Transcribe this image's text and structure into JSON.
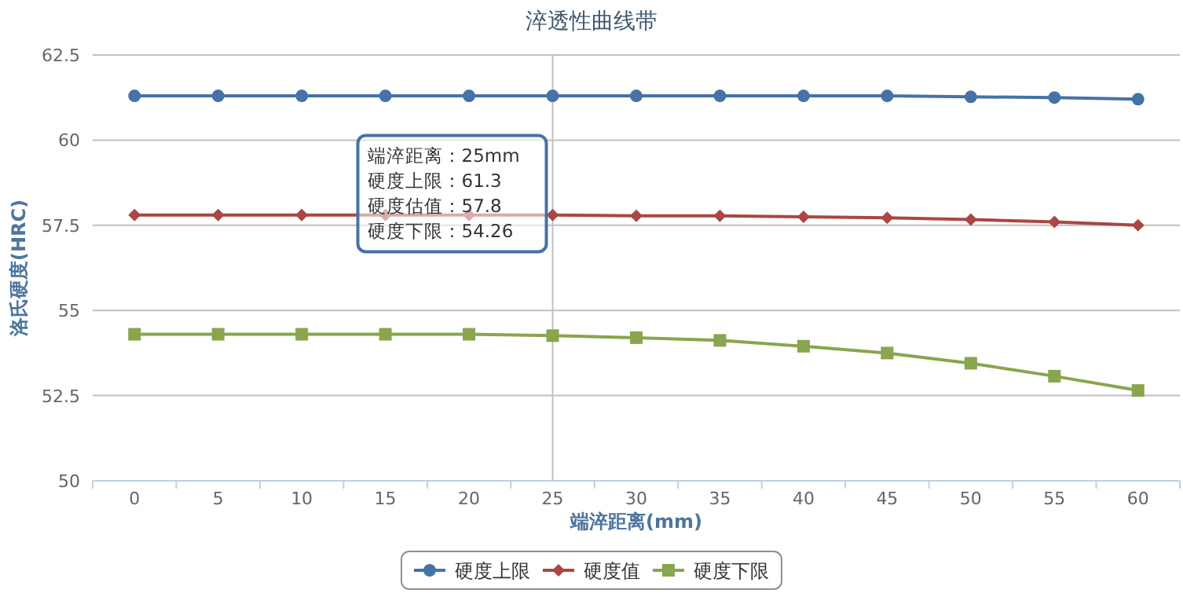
{
  "chart_data": {
    "type": "line",
    "title": "淬透性曲线带",
    "xlabel": "端淬距离(mm)",
    "ylabel": "洛氏硬度(HRC)",
    "categories": [
      "0",
      "5",
      "10",
      "15",
      "20",
      "25",
      "30",
      "35",
      "40",
      "45",
      "50",
      "55",
      "60"
    ],
    "series": [
      {
        "name": "硬度上限",
        "color": "#4572a7",
        "marker": "circle",
        "values": [
          61.3,
          61.3,
          61.3,
          61.3,
          61.3,
          61.3,
          61.3,
          61.3,
          61.3,
          61.3,
          61.27,
          61.25,
          61.2
        ]
      },
      {
        "name": "硬度值",
        "color": "#aa4643",
        "marker": "diamond",
        "values": [
          57.8,
          57.8,
          57.8,
          57.8,
          57.8,
          57.8,
          57.78,
          57.78,
          57.75,
          57.72,
          57.67,
          57.6,
          57.5
        ]
      },
      {
        "name": "硬度下限",
        "color": "#89a54e",
        "marker": "square",
        "values": [
          54.3,
          54.3,
          54.3,
          54.3,
          54.3,
          54.26,
          54.2,
          54.12,
          53.95,
          53.75,
          53.45,
          53.07,
          52.65
        ]
      }
    ],
    "ylim": [
      50,
      62.5
    ],
    "yticks": [
      50,
      52.5,
      55,
      57.5,
      60,
      62.5
    ],
    "grid": "y",
    "legend": "bottom",
    "ref_lines": [
      {
        "axis": "x",
        "value": "25",
        "color": "#c0c0c0"
      }
    ],
    "annotations": [
      {
        "text": "端淬距离：25mm\n硬度上限：61.3\n硬度估值：57.8\n硬度下限：54.26",
        "x": "25"
      }
    ]
  }
}
